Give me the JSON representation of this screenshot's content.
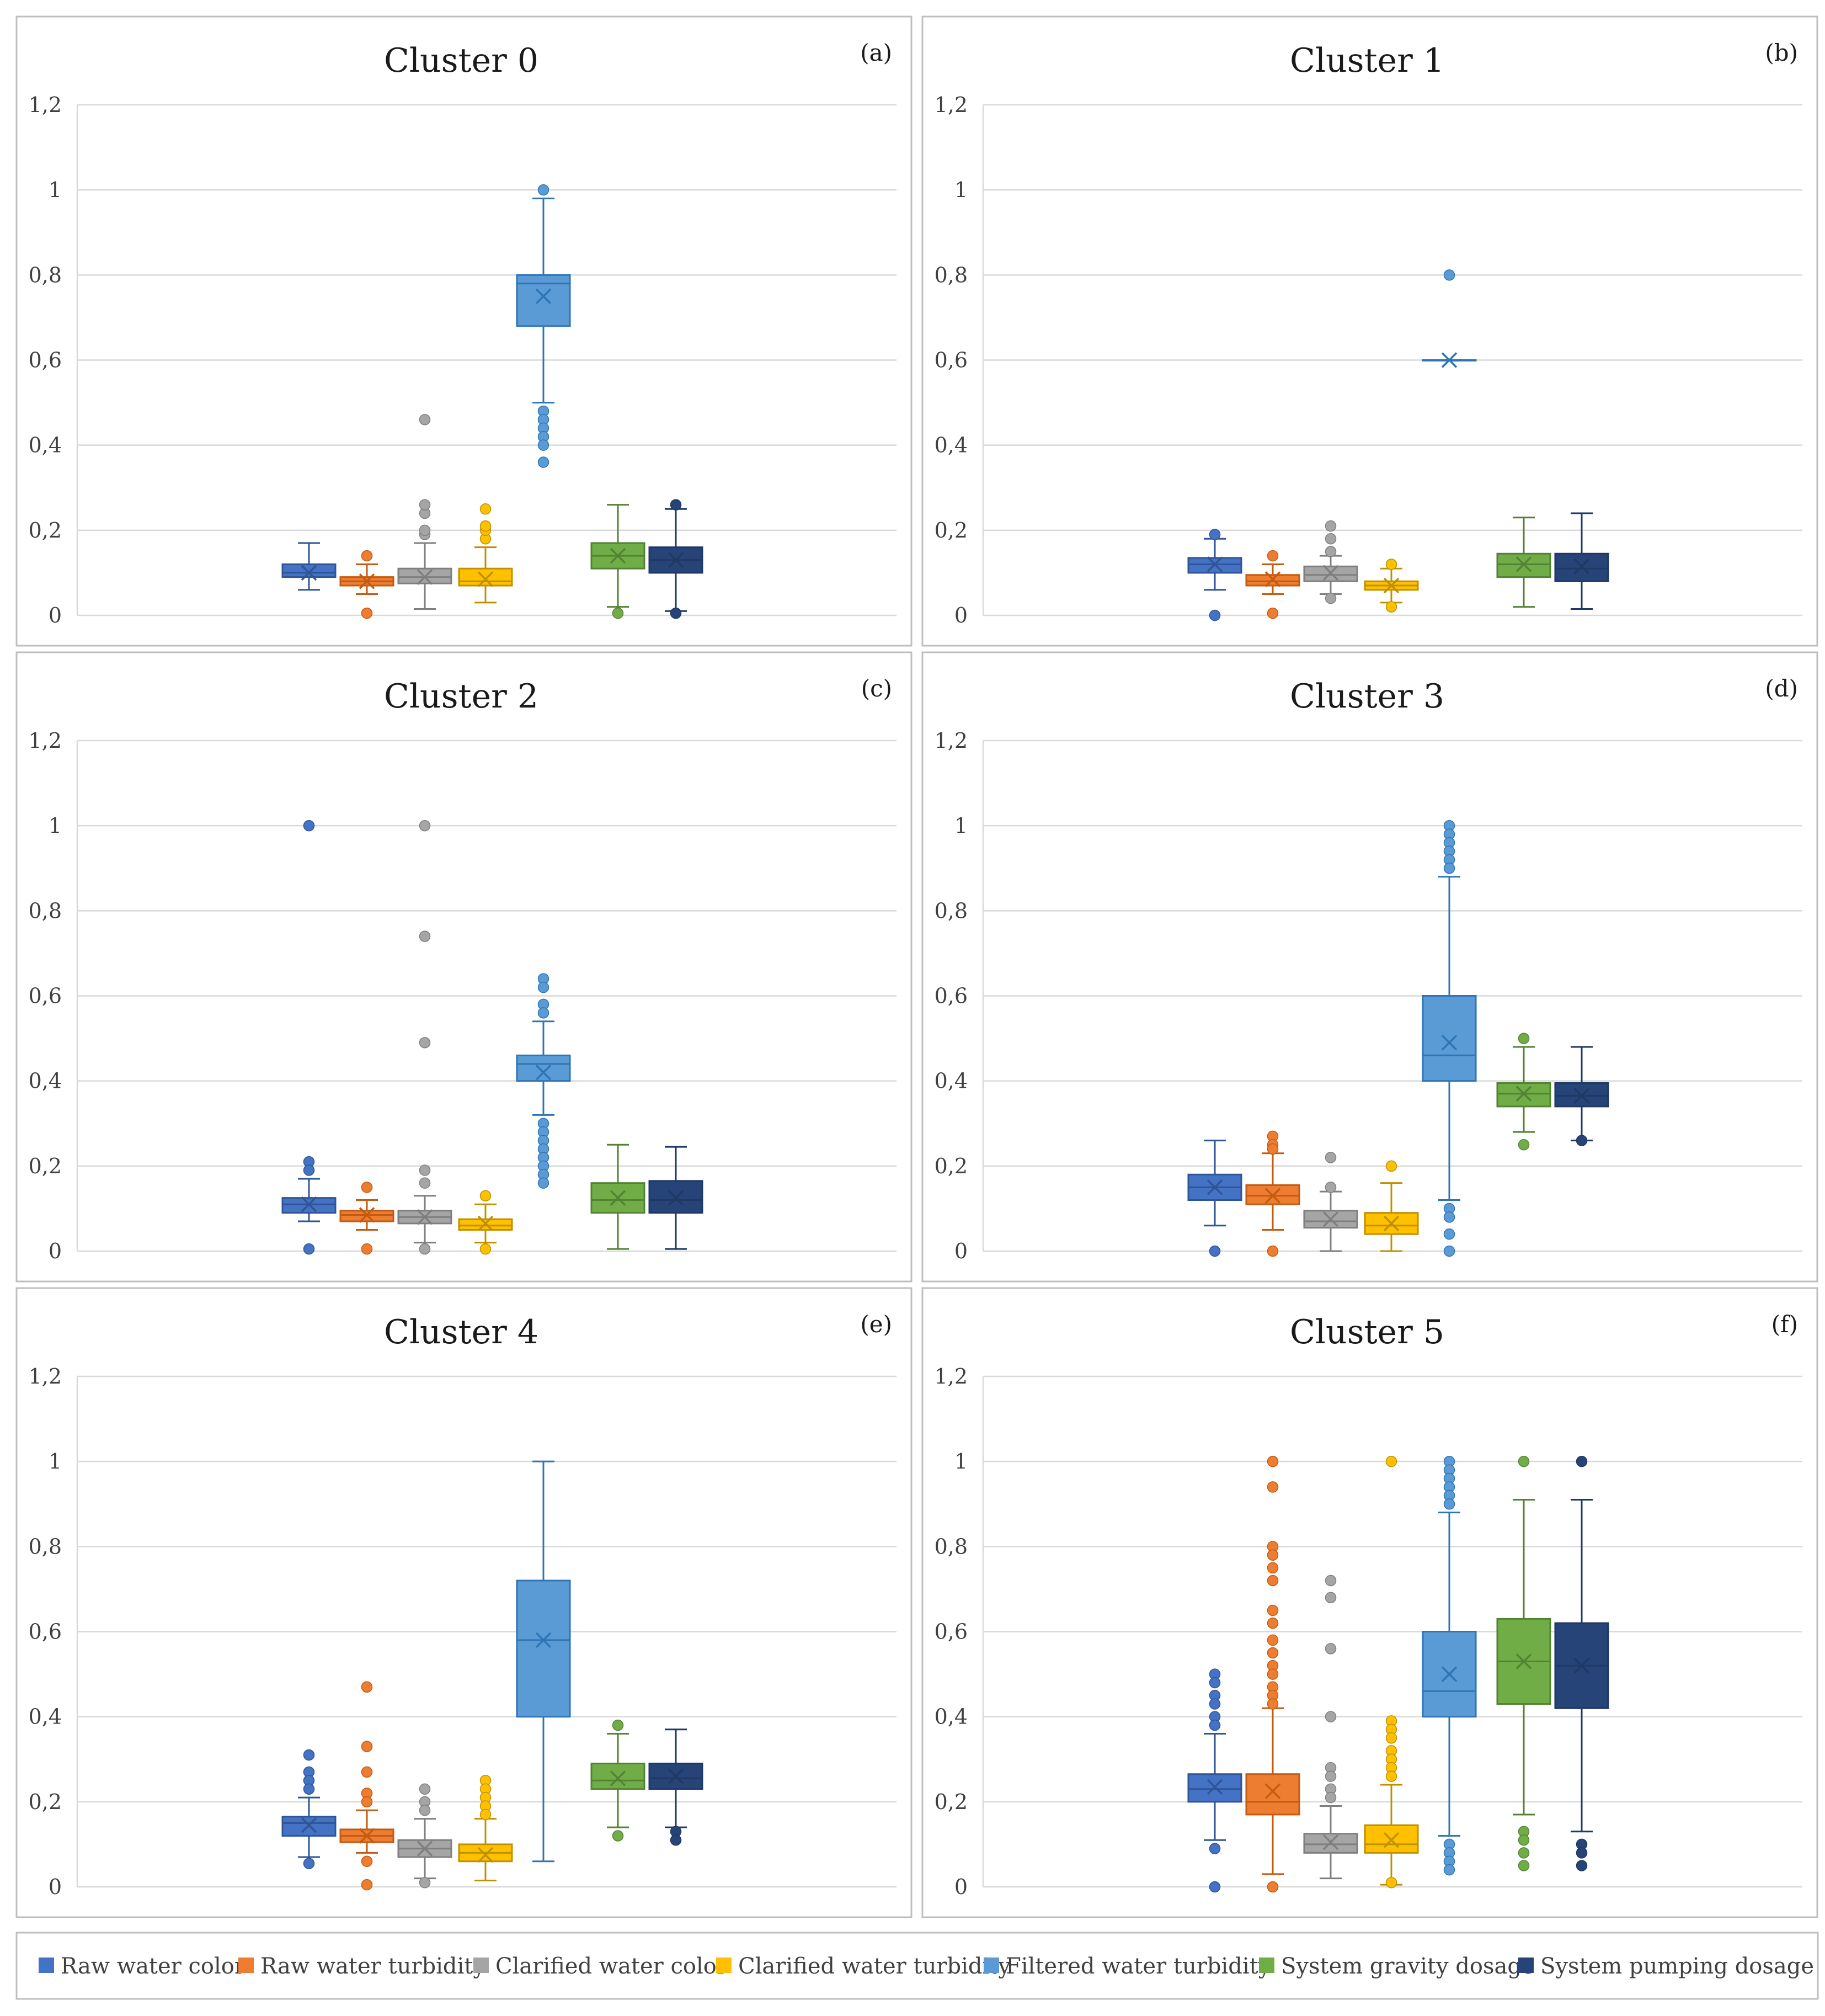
{
  "series_legend": [
    {
      "name": "Raw water color",
      "color": "#4472c4",
      "dark": "#2f5597"
    },
    {
      "name": "Raw water turbidity",
      "color": "#ed7d31",
      "dark": "#c55a11"
    },
    {
      "name": "Clarified water color",
      "color": "#a5a5a5",
      "dark": "#7f7f7f"
    },
    {
      "name": "Clarified water turbidity",
      "color": "#ffc000",
      "dark": "#bf9000"
    },
    {
      "name": "Filtered water turbidity",
      "color": "#5b9bd5",
      "dark": "#2e75b6"
    },
    {
      "name": "System gravity dosage",
      "color": "#70ad47",
      "dark": "#548235"
    },
    {
      "name": "System pumping dosage",
      "color": "#264478",
      "dark": "#1f3864"
    }
  ],
  "chart_data": [
    {
      "type": "box",
      "title": "Cluster 0",
      "tag": "(a)",
      "ylim": [
        0,
        1.2
      ],
      "yticks": [
        "0",
        "0,2",
        "0,4",
        "0,6",
        "0,8",
        "1",
        "1,2"
      ],
      "boxes": [
        {
          "series": "Raw water color",
          "whisker_low": 0.06,
          "q1": 0.09,
          "median": 0.1,
          "q3": 0.12,
          "whisker_high": 0.17,
          "mean": 0.1,
          "outliers": []
        },
        {
          "series": "Raw water turbidity",
          "whisker_low": 0.05,
          "q1": 0.07,
          "median": 0.08,
          "q3": 0.09,
          "whisker_high": 0.12,
          "mean": 0.08,
          "outliers": [
            0.14,
            0.005
          ]
        },
        {
          "series": "Clarified water color",
          "whisker_low": 0.015,
          "q1": 0.075,
          "median": 0.09,
          "q3": 0.11,
          "whisker_high": 0.17,
          "mean": 0.09,
          "outliers": [
            0.19,
            0.2,
            0.24,
            0.26,
            0.46
          ]
        },
        {
          "series": "Clarified water turbidity",
          "whisker_low": 0.03,
          "q1": 0.07,
          "median": 0.08,
          "q3": 0.11,
          "whisker_high": 0.16,
          "mean": 0.085,
          "outliers": [
            0.18,
            0.2,
            0.21,
            0.25
          ]
        },
        {
          "series": "Filtered water turbidity",
          "whisker_low": 0.5,
          "q1": 0.68,
          "median": 0.78,
          "q3": 0.8,
          "whisker_high": 0.98,
          "mean": 0.75,
          "outliers": [
            1.0,
            0.48,
            0.46,
            0.44,
            0.42,
            0.4,
            0.36
          ]
        },
        {
          "series": "System gravity dosage",
          "whisker_low": 0.02,
          "q1": 0.11,
          "median": 0.14,
          "q3": 0.17,
          "whisker_high": 0.26,
          "mean": 0.14,
          "outliers": [
            0.005
          ]
        },
        {
          "series": "System pumping dosage",
          "whisker_low": 0.01,
          "q1": 0.1,
          "median": 0.13,
          "q3": 0.16,
          "whisker_high": 0.25,
          "mean": 0.13,
          "outliers": [
            0.26,
            0.005
          ]
        }
      ]
    },
    {
      "type": "box",
      "title": "Cluster 1",
      "tag": "(b)",
      "ylim": [
        0,
        1.2
      ],
      "yticks": [
        "0",
        "0,2",
        "0,4",
        "0,6",
        "0,8",
        "1",
        "1,2"
      ],
      "boxes": [
        {
          "series": "Raw water color",
          "whisker_low": 0.06,
          "q1": 0.1,
          "median": 0.12,
          "q3": 0.135,
          "whisker_high": 0.18,
          "mean": 0.12,
          "outliers": [
            0.19,
            0.0
          ]
        },
        {
          "series": "Raw water turbidity",
          "whisker_low": 0.05,
          "q1": 0.07,
          "median": 0.08,
          "q3": 0.095,
          "whisker_high": 0.12,
          "mean": 0.085,
          "outliers": [
            0.14,
            0.005
          ]
        },
        {
          "series": "Clarified water color",
          "whisker_low": 0.05,
          "q1": 0.08,
          "median": 0.095,
          "q3": 0.115,
          "whisker_high": 0.14,
          "mean": 0.1,
          "outliers": [
            0.15,
            0.18,
            0.21,
            0.04
          ]
        },
        {
          "series": "Clarified water turbidity",
          "whisker_low": 0.03,
          "q1": 0.06,
          "median": 0.07,
          "q3": 0.08,
          "whisker_high": 0.11,
          "mean": 0.07,
          "outliers": [
            0.12,
            0.02
          ]
        },
        {
          "series": "Filtered water turbidity",
          "whisker_low": 0.6,
          "q1": 0.6,
          "median": 0.6,
          "q3": 0.6,
          "whisker_high": 0.6,
          "mean": 0.6,
          "outliers": [
            0.8
          ]
        },
        {
          "series": "System gravity dosage",
          "whisker_low": 0.02,
          "q1": 0.09,
          "median": 0.12,
          "q3": 0.145,
          "whisker_high": 0.23,
          "mean": 0.12,
          "outliers": []
        },
        {
          "series": "System pumping dosage",
          "whisker_low": 0.015,
          "q1": 0.08,
          "median": 0.11,
          "q3": 0.145,
          "whisker_high": 0.24,
          "mean": 0.115,
          "outliers": []
        }
      ]
    },
    {
      "type": "box",
      "title": "Cluster 2",
      "tag": "(c)",
      "ylim": [
        0,
        1.2
      ],
      "yticks": [
        "0",
        "0,2",
        "0,4",
        "0,6",
        "0,8",
        "1",
        "1,2"
      ],
      "boxes": [
        {
          "series": "Raw water color",
          "whisker_low": 0.07,
          "q1": 0.09,
          "median": 0.11,
          "q3": 0.125,
          "whisker_high": 0.17,
          "mean": 0.11,
          "outliers": [
            1.0,
            0.21,
            0.19,
            0.005
          ]
        },
        {
          "series": "Raw water turbidity",
          "whisker_low": 0.05,
          "q1": 0.07,
          "median": 0.085,
          "q3": 0.095,
          "whisker_high": 0.12,
          "mean": 0.085,
          "outliers": [
            0.15,
            0.005
          ]
        },
        {
          "series": "Clarified water color",
          "whisker_low": 0.02,
          "q1": 0.065,
          "median": 0.08,
          "q3": 0.095,
          "whisker_high": 0.13,
          "mean": 0.08,
          "outliers": [
            1.0,
            0.74,
            0.49,
            0.19,
            0.16,
            0.005
          ]
        },
        {
          "series": "Clarified water turbidity",
          "whisker_low": 0.02,
          "q1": 0.05,
          "median": 0.06,
          "q3": 0.075,
          "whisker_high": 0.11,
          "mean": 0.065,
          "outliers": [
            0.13,
            0.005
          ]
        },
        {
          "series": "Filtered water turbidity",
          "whisker_low": 0.32,
          "q1": 0.4,
          "median": 0.44,
          "q3": 0.46,
          "whisker_high": 0.54,
          "mean": 0.42,
          "outliers": [
            0.64,
            0.62,
            0.58,
            0.56,
            0.3,
            0.28,
            0.26,
            0.24,
            0.22,
            0.2,
            0.18,
            0.16
          ]
        },
        {
          "series": "System gravity dosage",
          "whisker_low": 0.005,
          "q1": 0.09,
          "median": 0.12,
          "q3": 0.16,
          "whisker_high": 0.25,
          "mean": 0.125,
          "outliers": []
        },
        {
          "series": "System pumping dosage",
          "whisker_low": 0.005,
          "q1": 0.09,
          "median": 0.12,
          "q3": 0.165,
          "whisker_high": 0.245,
          "mean": 0.125,
          "outliers": []
        }
      ]
    },
    {
      "type": "box",
      "title": "Cluster 3",
      "tag": "(d)",
      "ylim": [
        0,
        1.2
      ],
      "yticks": [
        "0",
        "0,2",
        "0,4",
        "0,6",
        "0,8",
        "1",
        "1,2"
      ],
      "boxes": [
        {
          "series": "Raw water color",
          "whisker_low": 0.06,
          "q1": 0.12,
          "median": 0.15,
          "q3": 0.18,
          "whisker_high": 0.26,
          "mean": 0.15,
          "outliers": [
            0.0
          ]
        },
        {
          "series": "Raw water turbidity",
          "whisker_low": 0.05,
          "q1": 0.11,
          "median": 0.13,
          "q3": 0.155,
          "whisker_high": 0.23,
          "mean": 0.13,
          "outliers": [
            0.27,
            0.25,
            0.24,
            0.0
          ]
        },
        {
          "series": "Clarified water color",
          "whisker_low": 0.0,
          "q1": 0.055,
          "median": 0.07,
          "q3": 0.095,
          "whisker_high": 0.14,
          "mean": 0.075,
          "outliers": [
            0.22,
            0.15
          ]
        },
        {
          "series": "Clarified water turbidity",
          "whisker_low": 0.0,
          "q1": 0.04,
          "median": 0.06,
          "q3": 0.09,
          "whisker_high": 0.16,
          "mean": 0.065,
          "outliers": [
            0.2
          ]
        },
        {
          "series": "Filtered water turbidity",
          "whisker_low": 0.12,
          "q1": 0.4,
          "median": 0.46,
          "q3": 0.6,
          "whisker_high": 0.88,
          "mean": 0.49,
          "outliers": [
            1.0,
            0.98,
            0.96,
            0.94,
            0.92,
            0.9,
            0.1,
            0.08,
            0.04,
            0.0
          ]
        },
        {
          "series": "System gravity dosage",
          "whisker_low": 0.28,
          "q1": 0.34,
          "median": 0.37,
          "q3": 0.395,
          "whisker_high": 0.48,
          "mean": 0.37,
          "outliers": [
            0.5,
            0.25
          ]
        },
        {
          "series": "System pumping dosage",
          "whisker_low": 0.26,
          "q1": 0.34,
          "median": 0.365,
          "q3": 0.395,
          "whisker_high": 0.48,
          "mean": 0.365,
          "outliers": [
            0.26
          ]
        }
      ]
    },
    {
      "type": "box",
      "title": "Cluster 4",
      "tag": "(e)",
      "ylim": [
        0,
        1.2
      ],
      "yticks": [
        "0",
        "0,2",
        "0,4",
        "0,6",
        "0,8",
        "1",
        "1,2"
      ],
      "boxes": [
        {
          "series": "Raw water color",
          "whisker_low": 0.07,
          "q1": 0.12,
          "median": 0.15,
          "q3": 0.165,
          "whisker_high": 0.21,
          "mean": 0.145,
          "outliers": [
            0.31,
            0.27,
            0.25,
            0.23,
            0.055
          ]
        },
        {
          "series": "Raw water turbidity",
          "whisker_low": 0.08,
          "q1": 0.105,
          "median": 0.12,
          "q3": 0.135,
          "whisker_high": 0.18,
          "mean": 0.12,
          "outliers": [
            0.47,
            0.33,
            0.27,
            0.22,
            0.2,
            0.06,
            0.005
          ]
        },
        {
          "series": "Clarified water color",
          "whisker_low": 0.02,
          "q1": 0.07,
          "median": 0.09,
          "q3": 0.11,
          "whisker_high": 0.16,
          "mean": 0.09,
          "outliers": [
            0.23,
            0.2,
            0.18,
            0.01
          ]
        },
        {
          "series": "Clarified water turbidity",
          "whisker_low": 0.015,
          "q1": 0.06,
          "median": 0.08,
          "q3": 0.1,
          "whisker_high": 0.16,
          "mean": 0.075,
          "outliers": [
            0.25,
            0.23,
            0.21,
            0.19,
            0.17
          ]
        },
        {
          "series": "Filtered water turbidity",
          "whisker_low": 0.06,
          "q1": 0.4,
          "median": 0.58,
          "q3": 0.72,
          "whisker_high": 1.0,
          "mean": 0.58,
          "outliers": []
        },
        {
          "series": "System gravity dosage",
          "whisker_low": 0.14,
          "q1": 0.23,
          "median": 0.25,
          "q3": 0.29,
          "whisker_high": 0.36,
          "mean": 0.255,
          "outliers": [
            0.38,
            0.12
          ]
        },
        {
          "series": "System pumping dosage",
          "whisker_low": 0.14,
          "q1": 0.23,
          "median": 0.255,
          "q3": 0.29,
          "whisker_high": 0.37,
          "mean": 0.26,
          "outliers": [
            0.13,
            0.11
          ]
        }
      ]
    },
    {
      "type": "box",
      "title": "Cluster 5",
      "tag": "(f)",
      "ylim": [
        0,
        1.2
      ],
      "yticks": [
        "0",
        "0,2",
        "0,4",
        "0,6",
        "0,8",
        "1",
        "1,2"
      ],
      "boxes": [
        {
          "series": "Raw water color",
          "whisker_low": 0.11,
          "q1": 0.2,
          "median": 0.23,
          "q3": 0.265,
          "whisker_high": 0.36,
          "mean": 0.235,
          "outliers": [
            0.5,
            0.48,
            0.45,
            0.43,
            0.4,
            0.38,
            0.09,
            0.0
          ]
        },
        {
          "series": "Raw water turbidity",
          "whisker_low": 0.03,
          "q1": 0.17,
          "median": 0.2,
          "q3": 0.265,
          "whisker_high": 0.42,
          "mean": 0.225,
          "outliers": [
            1.0,
            0.94,
            0.8,
            0.78,
            0.75,
            0.72,
            0.65,
            0.62,
            0.58,
            0.55,
            0.52,
            0.5,
            0.47,
            0.45,
            0.43,
            0.0
          ]
        },
        {
          "series": "Clarified water color",
          "whisker_low": 0.02,
          "q1": 0.08,
          "median": 0.1,
          "q3": 0.125,
          "whisker_high": 0.19,
          "mean": 0.105,
          "outliers": [
            0.72,
            0.68,
            0.56,
            0.4,
            0.28,
            0.26,
            0.23,
            0.21
          ]
        },
        {
          "series": "Clarified water turbidity",
          "whisker_low": 0.005,
          "q1": 0.08,
          "median": 0.1,
          "q3": 0.145,
          "whisker_high": 0.24,
          "mean": 0.11,
          "outliers": [
            1.0,
            0.39,
            0.37,
            0.35,
            0.32,
            0.3,
            0.28,
            0.26,
            0.01
          ]
        },
        {
          "series": "Filtered water turbidity",
          "whisker_low": 0.12,
          "q1": 0.4,
          "median": 0.46,
          "q3": 0.6,
          "whisker_high": 0.88,
          "mean": 0.5,
          "outliers": [
            1.0,
            0.98,
            0.96,
            0.94,
            0.92,
            0.9,
            0.1,
            0.08,
            0.06,
            0.04
          ]
        },
        {
          "series": "System gravity dosage",
          "whisker_low": 0.17,
          "q1": 0.43,
          "median": 0.53,
          "q3": 0.63,
          "whisker_high": 0.91,
          "mean": 0.53,
          "outliers": [
            1.0,
            0.13,
            0.11,
            0.08,
            0.05
          ]
        },
        {
          "series": "System pumping dosage",
          "whisker_low": 0.13,
          "q1": 0.42,
          "median": 0.52,
          "q3": 0.62,
          "whisker_high": 0.91,
          "mean": 0.52,
          "outliers": [
            1.0,
            0.1,
            0.08,
            0.05
          ]
        }
      ]
    }
  ]
}
